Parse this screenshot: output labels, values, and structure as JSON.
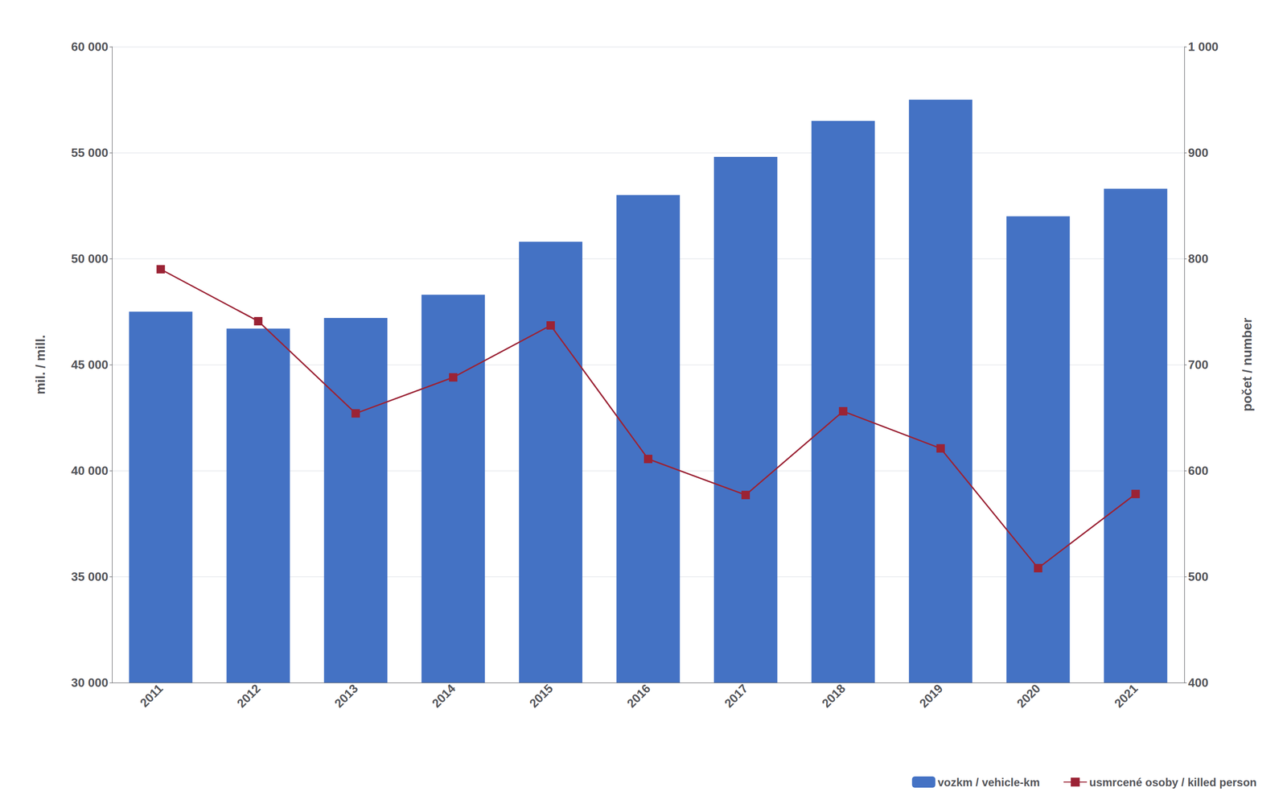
{
  "chart_data": {
    "type": "bar",
    "categories": [
      "2011",
      "2012",
      "2013",
      "2014",
      "2015",
      "2016",
      "2017",
      "2018",
      "2019",
      "2020",
      "2021"
    ],
    "ylabel": "mil. / mill.",
    "y2label": "počet / number",
    "series": [
      {
        "name": "vozkm / vehicle-km",
        "type": "bar",
        "color": "#4472C4",
        "values": [
          47500,
          46700,
          47200,
          48300,
          50800,
          53000,
          54800,
          56500,
          57500,
          52000,
          53300
        ]
      },
      {
        "name": "usmrcené osoby / killed person",
        "type": "line",
        "color": "#9B2335",
        "marker": "square",
        "axis": "y2",
        "values": [
          790,
          741,
          654,
          688,
          737,
          611,
          577,
          656,
          621,
          508,
          578
        ]
      }
    ],
    "ylim": [
      30000,
      60000
    ],
    "yticks": [
      {
        "value": 30000,
        "label": "30 000"
      },
      {
        "value": 35000,
        "label": "35 000"
      },
      {
        "value": 40000,
        "label": "40 000"
      },
      {
        "value": 45000,
        "label": "45 000"
      },
      {
        "value": 50000,
        "label": "50 000"
      },
      {
        "value": 55000,
        "label": "55 000"
      },
      {
        "value": 60000,
        "label": "60 000"
      }
    ],
    "y2lim": [
      400,
      1000
    ],
    "y2ticks": [
      400,
      500,
      600,
      700,
      800,
      900,
      {
        "value": 1000,
        "label": "1 000"
      }
    ],
    "grid": true,
    "legend": "lower right"
  }
}
